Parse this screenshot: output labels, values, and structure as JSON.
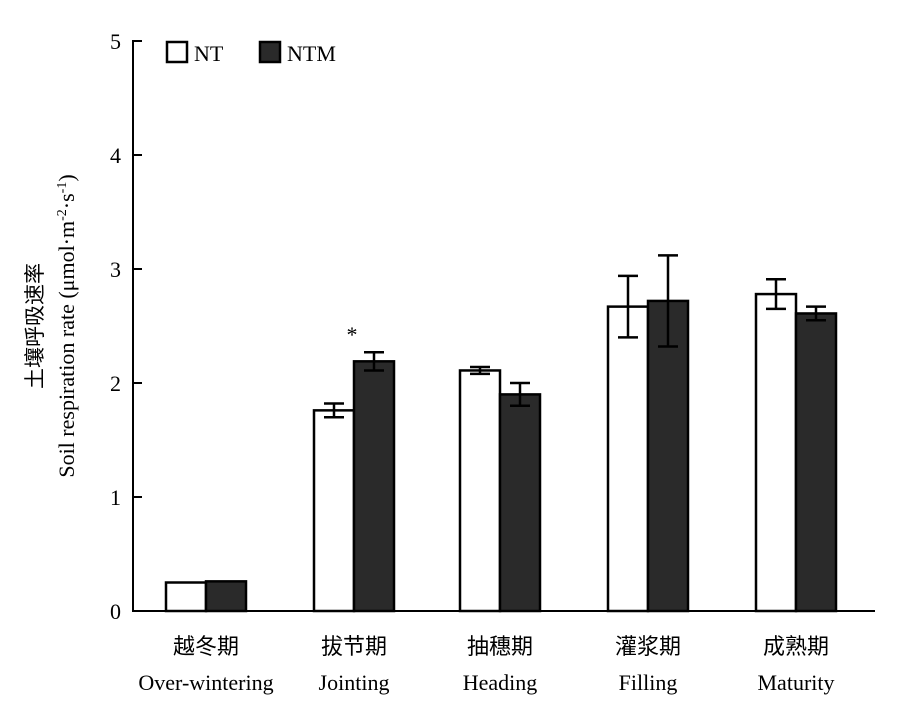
{
  "chart_data": {
    "type": "bar",
    "categories_cn": [
      "越冬期",
      "拔节期",
      "抽穗期",
      "灌浆期",
      "成熟期"
    ],
    "categories": [
      "Over-wintering",
      "Jointing",
      "Heading",
      "Filling",
      "Maturity"
    ],
    "series": [
      {
        "name": "NT",
        "color": "#ffffff",
        "values": [
          0.25,
          1.76,
          2.11,
          2.67,
          2.78
        ],
        "errors": [
          0.01,
          0.06,
          0.03,
          0.27,
          0.13
        ]
      },
      {
        "name": "NTM",
        "color": "#2a2a2a",
        "values": [
          0.26,
          2.19,
          1.9,
          2.72,
          2.61
        ],
        "errors": [
          0.0,
          0.08,
          0.1,
          0.4,
          0.06
        ]
      }
    ],
    "significance": [
      {
        "category": "Jointing",
        "series": "NTM",
        "label": "*"
      }
    ],
    "ylabel_cn": "土壤呼吸速率",
    "ylabel": "Soil respiration rate (μmol·m⁻²·s⁻¹)",
    "ylabel_prefix": "Soil respiration rate (μmol·m",
    "ylabel_sup1": "-2",
    "ylabel_mid": "·s",
    "ylabel_sup2": "-1",
    "ylabel_suffix": ")",
    "ylim": [
      0,
      5
    ],
    "yticks": [
      0,
      1,
      2,
      3,
      4,
      5
    ],
    "legend_position": "top-left",
    "grid": false
  }
}
